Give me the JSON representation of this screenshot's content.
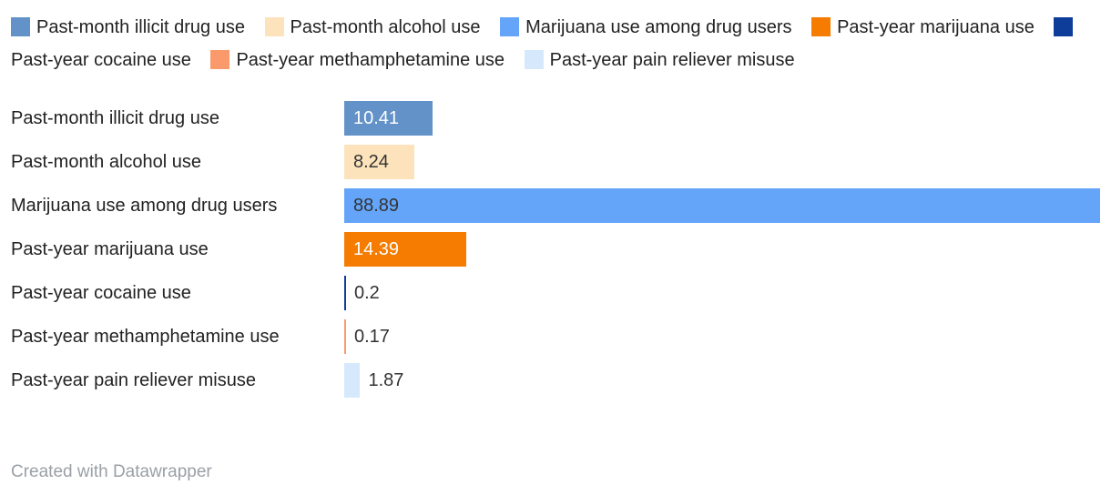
{
  "legend": {
    "items": [
      {
        "label": "Past-month illicit drug use",
        "color": "#6292C8"
      },
      {
        "label": "Past-month alcohol use",
        "color": "#FCE3BC"
      },
      {
        "label": "Marijuana use among drug users",
        "color": "#64A5F9"
      },
      {
        "label": "Past-year marijuana use",
        "color": "#F57C00"
      },
      {
        "label": "Past-year cocaine use",
        "color": "#0D3D99"
      },
      {
        "label": "Past-year methamphetamine use",
        "color": "#FA9A6C"
      },
      {
        "label": "Past-year pain reliever misuse",
        "color": "#D6E9FC"
      }
    ]
  },
  "chart_data": {
    "type": "bar",
    "orientation": "horizontal",
    "title": "",
    "xlabel": "",
    "ylabel": "",
    "axis_max": 88.89,
    "categories": [
      "Past-month illicit drug use",
      "Past-month alcohol use",
      "Marijuana use among drug users",
      "Past-year marijuana use",
      "Past-year cocaine use",
      "Past-year methamphetamine use",
      "Past-year pain reliever misuse"
    ],
    "values": [
      10.41,
      8.24,
      88.89,
      14.39,
      0.2,
      0.17,
      1.87
    ],
    "rows": [
      {
        "label": "Past-month illicit drug use",
        "value": 10.41,
        "display_value": "10.41",
        "color": "#6292C8",
        "value_color": "#FFFFFF",
        "value_position": "inside"
      },
      {
        "label": "Past-month alcohol use",
        "value": 8.24,
        "display_value": "8.24",
        "color": "#FCE3BC",
        "value_color": "#333333",
        "value_position": "inside"
      },
      {
        "label": "Marijuana use among drug users",
        "value": 88.89,
        "display_value": "88.89",
        "color": "#64A5F9",
        "value_color": "#333333",
        "value_position": "inside"
      },
      {
        "label": "Past-year marijuana use",
        "value": 14.39,
        "display_value": "14.39",
        "color": "#F57C00",
        "value_color": "#FFFFFF",
        "value_position": "inside"
      },
      {
        "label": "Past-year cocaine use",
        "value": 0.2,
        "display_value": "0.2",
        "color": "#0D3D99",
        "value_color": "#333333",
        "value_position": "outside"
      },
      {
        "label": "Past-year methamphetamine use",
        "value": 0.17,
        "display_value": "0.17",
        "color": "#FA9A6C",
        "value_color": "#333333",
        "value_position": "outside"
      },
      {
        "label": "Past-year pain reliever misuse",
        "value": 1.87,
        "display_value": "1.87",
        "color": "#D6E9FC",
        "value_color": "#333333",
        "value_position": "outside"
      }
    ],
    "legend_position": "top",
    "grid": false
  },
  "footer": {
    "text": "Created with Datawrapper"
  }
}
